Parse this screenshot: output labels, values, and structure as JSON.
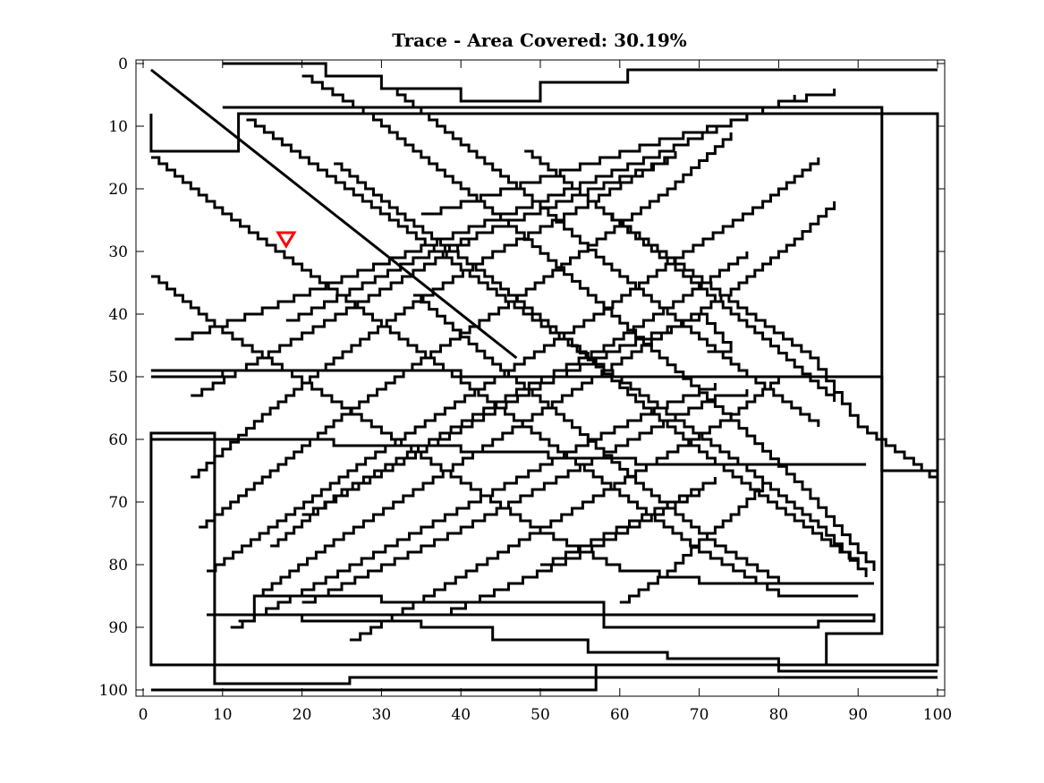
{
  "chart_data": {
    "type": "line",
    "title": "Trace - Area Covered: 30.19%",
    "xlabel": "",
    "ylabel": "",
    "xlim": [
      0,
      100
    ],
    "ylim": [
      0,
      100
    ],
    "y_reversed": true,
    "grid": false,
    "x_ticks": [
      0,
      10,
      20,
      30,
      40,
      50,
      60,
      70,
      80,
      90,
      100
    ],
    "y_ticks": [
      0,
      10,
      20,
      30,
      40,
      50,
      60,
      70,
      80,
      90,
      100
    ],
    "colors": {
      "trace": "#000000",
      "marker": "#ff0000"
    },
    "marker": {
      "shape": "triangle-down",
      "x": 18,
      "y": 28
    },
    "series": [
      {
        "x": [
          1,
          47
        ],
        "y": [
          1,
          47
        ]
      },
      {
        "x": [
          1,
          1,
          12,
          12,
          100,
          100,
          1,
          1,
          9,
          9,
          26,
          26,
          100
        ],
        "y": [
          8,
          14,
          14,
          8,
          8,
          96,
          96,
          59,
          59,
          99,
          99,
          98,
          98
        ]
      },
      {
        "x": [
          1,
          57,
          57,
          86,
          86,
          93,
          93,
          10
        ],
        "y": [
          100,
          100,
          96,
          96,
          91,
          91,
          7,
          7
        ]
      },
      {
        "x": [
          1,
          10,
          10,
          1
        ],
        "y": [
          49,
          49,
          50,
          50
        ]
      },
      {
        "x": [
          1,
          40,
          40,
          93,
          93,
          100,
          100
        ],
        "y": [
          49,
          49,
          50,
          50,
          65,
          65,
          67
        ]
      },
      {
        "x": [
          8,
          92,
          92,
          85,
          85,
          58,
          58,
          30,
          30,
          14,
          14,
          12
        ],
        "y": [
          88,
          88,
          89,
          89,
          90,
          90,
          86,
          86,
          85,
          85,
          89,
          89
        ]
      },
      {
        "x": [
          8,
          20,
          20,
          35,
          35,
          44,
          44,
          56,
          56,
          66,
          66,
          80,
          80,
          100
        ],
        "y": [
          88,
          88,
          89,
          89,
          90,
          90,
          92,
          92,
          94,
          94,
          95,
          95,
          97,
          97
        ]
      },
      {
        "x": [
          10,
          23,
          23,
          30,
          30,
          40,
          40,
          50,
          50,
          61,
          61,
          100
        ],
        "y": [
          0,
          0,
          2,
          2,
          4,
          4,
          6,
          6,
          3,
          3,
          1,
          1
        ]
      },
      {
        "x": [
          1,
          24,
          24,
          40,
          40,
          51,
          51,
          62,
          62,
          91
        ],
        "y": [
          60,
          60,
          61,
          61,
          62,
          62,
          63,
          63,
          64,
          64
        ]
      },
      {
        "x": [
          6,
          15,
          24,
          34,
          44,
          56,
          67
        ],
        "y": [
          66,
          56,
          47,
          38,
          30,
          22,
          14
        ]
      },
      {
        "x": [
          7,
          16,
          25,
          35,
          46,
          56,
          66,
          74
        ],
        "y": [
          74,
          65,
          56,
          47,
          38,
          29,
          20,
          11
        ]
      },
      {
        "x": [
          8,
          18,
          28,
          38,
          48,
          58,
          68,
          78,
          85
        ],
        "y": [
          81,
          72,
          63,
          55,
          47,
          39,
          30,
          22,
          15
        ]
      },
      {
        "x": [
          14,
          24,
          34,
          44,
          54,
          64,
          74,
          82,
          87
        ],
        "y": [
          85,
          76,
          68,
          60,
          52,
          44,
          36,
          28,
          22
        ]
      },
      {
        "x": [
          16,
          25,
          36,
          47,
          58,
          68,
          76
        ],
        "y": [
          77,
          68,
          60,
          52,
          45,
          37,
          30
        ]
      },
      {
        "x": [
          20,
          30,
          40,
          50,
          60,
          70,
          74,
          71
        ],
        "y": [
          72,
          65,
          58,
          51,
          45,
          40,
          46,
          46
        ]
      },
      {
        "x": [
          1,
          10,
          20,
          30,
          40,
          50,
          60,
          70,
          80,
          90
        ],
        "y": [
          15,
          24,
          33,
          42,
          51,
          60,
          69,
          78,
          85,
          85
        ]
      },
      {
        "x": [
          1,
          10,
          20,
          30,
          40,
          50,
          60,
          70,
          80
        ],
        "y": [
          34,
          43,
          51,
          59,
          67,
          75,
          81,
          83,
          83
        ]
      },
      {
        "x": [
          13,
          22,
          31,
          40,
          49,
          58,
          67,
          76,
          85,
          91
        ],
        "y": [
          9,
          17,
          25,
          33,
          41,
          49,
          57,
          65,
          74,
          82
        ]
      },
      {
        "x": [
          20,
          29,
          38,
          47,
          56,
          65,
          74,
          83,
          92
        ],
        "y": [
          2,
          9,
          18,
          27,
          37,
          47,
          57,
          68,
          81
        ]
      },
      {
        "x": [
          24,
          33,
          43,
          53,
          62,
          72,
          82,
          90
        ],
        "y": [
          16,
          25,
          34,
          44,
          54,
          64,
          73,
          80
        ]
      },
      {
        "x": [
          31,
          40,
          49,
          58,
          67,
          76,
          85
        ],
        "y": [
          4,
          13,
          22,
          32,
          41,
          50,
          58
        ]
      },
      {
        "x": [
          48,
          58,
          68,
          78,
          87
        ],
        "y": [
          14,
          24,
          34,
          44,
          54
        ]
      },
      {
        "x": [
          58,
          67,
          76,
          84,
          90,
          97,
          100
        ],
        "y": [
          24,
          32,
          40,
          47,
          58,
          64,
          67
        ]
      },
      {
        "x": [
          34,
          43,
          53,
          62,
          72,
          80,
          92
        ],
        "y": [
          37,
          47,
          57,
          67,
          77,
          83,
          83
        ]
      },
      {
        "x": [
          20,
          30,
          40,
          49,
          58,
          67,
          72,
          76
        ],
        "y": [
          86,
          80,
          74,
          68,
          62,
          56,
          53,
          52
        ]
      },
      {
        "x": [
          11,
          20,
          29,
          38,
          47,
          56,
          66,
          72
        ],
        "y": [
          90,
          84,
          78,
          72,
          66,
          60,
          54,
          51
        ]
      },
      {
        "x": [
          26,
          34,
          42,
          50,
          58,
          66,
          74,
          80
        ],
        "y": [
          92,
          86,
          80,
          74,
          68,
          62,
          56,
          50
        ]
      },
      {
        "x": [
          60,
          66,
          70,
          74,
          78
        ],
        "y": [
          86,
          81,
          76,
          72,
          67
        ]
      },
      {
        "x": [
          50,
          58,
          66,
          72
        ],
        "y": [
          80,
          75,
          70,
          66
        ]
      },
      {
        "x": [
          37,
          46,
          55,
          64,
          70
        ],
        "y": [
          88,
          83,
          78,
          72,
          68
        ]
      },
      {
        "x": [
          4,
          15,
          25,
          35,
          45,
          55,
          65,
          74,
          82
        ],
        "y": [
          44,
          39,
          34,
          29,
          24,
          19,
          14,
          9,
          5
        ]
      },
      {
        "x": [
          6,
          13,
          20,
          27,
          34,
          41
        ],
        "y": [
          53,
          48,
          43,
          38,
          33,
          28
        ]
      },
      {
        "x": [
          18,
          26,
          34,
          42,
          50,
          58,
          66
        ],
        "y": [
          41,
          36,
          31,
          27,
          23,
          19,
          15
        ]
      },
      {
        "x": [
          35,
          45,
          55,
          65,
          74,
          80,
          87
        ],
        "y": [
          24,
          20,
          16,
          12,
          9,
          6,
          4
        ]
      }
    ]
  }
}
